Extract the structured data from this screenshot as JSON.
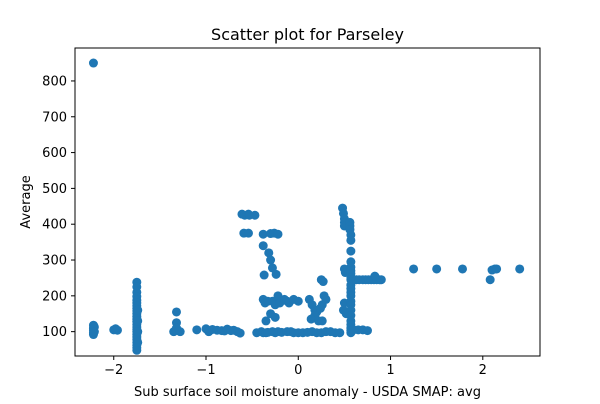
{
  "chart_data": {
    "type": "scatter",
    "title": "Scatter plot for Parseley",
    "xlabel": "Sub surface soil moisture anomaly - USDA SMAP: avg",
    "ylabel": "Average",
    "xlim": [
      -2.42,
      2.62
    ],
    "ylim": [
      32,
      892
    ],
    "xticks": [
      -2,
      -1,
      0,
      1,
      2
    ],
    "yticks": [
      100,
      200,
      300,
      400,
      500,
      600,
      700,
      800
    ],
    "grid": false,
    "marker_color": "#1f77b4",
    "series": [
      {
        "points": [
          [
            -2.22,
            850
          ],
          [
            -2.22,
            118
          ],
          [
            -2.22,
            110
          ],
          [
            -2.22,
            104
          ],
          [
            -2.22,
            97
          ],
          [
            -2.22,
            92
          ],
          [
            -2.21,
            113
          ],
          [
            -2.21,
            100
          ],
          [
            -2.0,
            105
          ],
          [
            -1.98,
            108
          ],
          [
            -1.96,
            104
          ],
          [
            -1.75,
            238
          ],
          [
            -1.75,
            225
          ],
          [
            -1.75,
            210
          ],
          [
            -1.75,
            198
          ],
          [
            -1.75,
            188
          ],
          [
            -1.75,
            180
          ],
          [
            -1.75,
            172
          ],
          [
            -1.75,
            165
          ],
          [
            -1.75,
            158
          ],
          [
            -1.75,
            150
          ],
          [
            -1.75,
            142
          ],
          [
            -1.75,
            135
          ],
          [
            -1.75,
            128
          ],
          [
            -1.75,
            120
          ],
          [
            -1.75,
            113
          ],
          [
            -1.75,
            106
          ],
          [
            -1.75,
            100
          ],
          [
            -1.75,
            92
          ],
          [
            -1.75,
            85
          ],
          [
            -1.75,
            78
          ],
          [
            -1.75,
            70
          ],
          [
            -1.75,
            62
          ],
          [
            -1.75,
            55
          ],
          [
            -1.75,
            48
          ],
          [
            -1.74,
            160
          ],
          [
            -1.74,
            130
          ],
          [
            -1.74,
            100
          ],
          [
            -1.74,
            70
          ],
          [
            -1.32,
            155
          ],
          [
            -1.32,
            125
          ],
          [
            -1.32,
            110
          ],
          [
            -1.35,
            100
          ],
          [
            -1.28,
            100
          ],
          [
            -1.1,
            105
          ],
          [
            -1.0,
            108
          ],
          [
            -0.97,
            100
          ],
          [
            -0.93,
            106
          ],
          [
            -0.88,
            104
          ],
          [
            -0.83,
            103
          ],
          [
            -0.8,
            102
          ],
          [
            -0.77,
            107
          ],
          [
            -0.73,
            103
          ],
          [
            -0.7,
            104
          ],
          [
            -0.66,
            100
          ],
          [
            -0.63,
            96
          ],
          [
            -0.61,
            428
          ],
          [
            -0.58,
            425
          ],
          [
            -0.54,
            428
          ],
          [
            -0.53,
            425
          ],
          [
            -0.47,
            425
          ],
          [
            -0.59,
            375
          ],
          [
            -0.54,
            375
          ],
          [
            -0.45,
            97
          ],
          [
            -0.4,
            100
          ],
          [
            -0.38,
            97
          ],
          [
            -0.35,
            97
          ],
          [
            -0.33,
            98
          ],
          [
            -0.38,
            372
          ],
          [
            -0.3,
            374
          ],
          [
            -0.26,
            375
          ],
          [
            -0.22,
            372
          ],
          [
            -0.38,
            340
          ],
          [
            -0.32,
            320
          ],
          [
            -0.3,
            300
          ],
          [
            -0.28,
            278
          ],
          [
            -0.24,
            260
          ],
          [
            -0.22,
            200
          ],
          [
            -0.37,
            258
          ],
          [
            -0.38,
            190
          ],
          [
            -0.36,
            180
          ],
          [
            -0.33,
            185
          ],
          [
            -0.28,
            185
          ],
          [
            -0.25,
            175
          ],
          [
            -0.2,
            180
          ],
          [
            -0.3,
            150
          ],
          [
            -0.25,
            140
          ],
          [
            -0.35,
            130
          ],
          [
            -0.28,
            100
          ],
          [
            -0.25,
            97
          ],
          [
            -0.22,
            100
          ],
          [
            -0.18,
            98
          ],
          [
            -0.15,
            190
          ],
          [
            -0.12,
            185
          ],
          [
            -0.1,
            180
          ],
          [
            -0.05,
            190
          ],
          [
            0.0,
            185
          ],
          [
            -0.12,
            100
          ],
          [
            -0.08,
            100
          ],
          [
            -0.05,
            97
          ],
          [
            0.0,
            97
          ],
          [
            0.05,
            97
          ],
          [
            0.1,
            98
          ],
          [
            0.12,
            190
          ],
          [
            0.15,
            175
          ],
          [
            0.18,
            160
          ],
          [
            0.2,
            155
          ],
          [
            0.18,
            145
          ],
          [
            0.14,
            135
          ],
          [
            0.22,
            130
          ],
          [
            0.26,
            130
          ],
          [
            0.24,
            165
          ],
          [
            0.26,
            175
          ],
          [
            0.25,
            245
          ],
          [
            0.27,
            240
          ],
          [
            0.28,
            200
          ],
          [
            0.3,
            190
          ],
          [
            0.15,
            100
          ],
          [
            0.2,
            97
          ],
          [
            0.25,
            97
          ],
          [
            0.3,
            100
          ],
          [
            0.35,
            100
          ],
          [
            0.4,
            97
          ],
          [
            0.45,
            97
          ],
          [
            0.48,
            445
          ],
          [
            0.49,
            430
          ],
          [
            0.5,
            415
          ],
          [
            0.5,
            405
          ],
          [
            0.5,
            395
          ],
          [
            0.5,
            275
          ],
          [
            0.51,
            265
          ],
          [
            0.5,
            180
          ],
          [
            0.49,
            160
          ],
          [
            0.52,
            150
          ],
          [
            0.56,
            405
          ],
          [
            0.56,
            395
          ],
          [
            0.56,
            385
          ],
          [
            0.57,
            370
          ],
          [
            0.57,
            355
          ],
          [
            0.57,
            325
          ],
          [
            0.57,
            295
          ],
          [
            0.57,
            280
          ],
          [
            0.57,
            270
          ],
          [
            0.57,
            262
          ],
          [
            0.57,
            250
          ],
          [
            0.57,
            245
          ],
          [
            0.57,
            230
          ],
          [
            0.57,
            220
          ],
          [
            0.57,
            210
          ],
          [
            0.57,
            200
          ],
          [
            0.57,
            185
          ],
          [
            0.57,
            175
          ],
          [
            0.57,
            160
          ],
          [
            0.57,
            145
          ],
          [
            0.57,
            130
          ],
          [
            0.57,
            120
          ],
          [
            0.57,
            110
          ],
          [
            0.57,
            103
          ],
          [
            0.57,
            97
          ],
          [
            0.6,
            105
          ],
          [
            0.65,
            105
          ],
          [
            0.7,
            105
          ],
          [
            0.75,
            103
          ],
          [
            0.6,
            245
          ],
          [
            0.63,
            245
          ],
          [
            0.66,
            245
          ],
          [
            0.7,
            245
          ],
          [
            0.73,
            245
          ],
          [
            0.76,
            245
          ],
          [
            0.79,
            245
          ],
          [
            0.82,
            245
          ],
          [
            0.85,
            245
          ],
          [
            0.88,
            245
          ],
          [
            0.9,
            245
          ],
          [
            0.83,
            255
          ],
          [
            1.25,
            275
          ],
          [
            1.5,
            275
          ],
          [
            1.78,
            275
          ],
          [
            2.08,
            245
          ],
          [
            2.1,
            272
          ],
          [
            2.13,
            275
          ],
          [
            2.15,
            275
          ],
          [
            2.4,
            275
          ]
        ]
      }
    ]
  }
}
